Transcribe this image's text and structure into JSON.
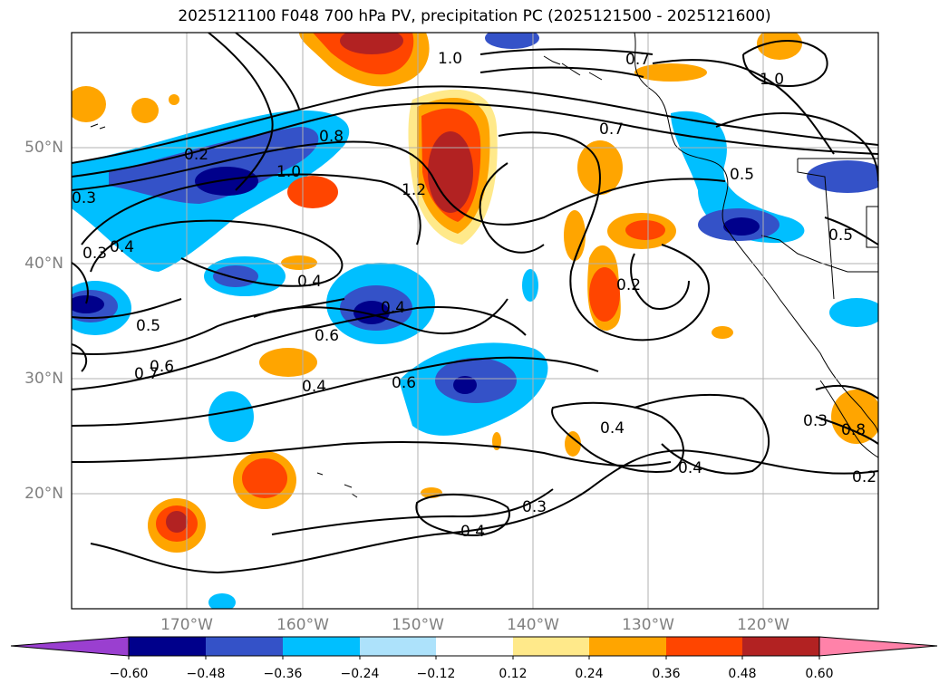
{
  "title": "2025121100 F048 700 hPa PV, precipitation PC (2025121500 - 2025121600)",
  "lon_labels": [
    "170°W",
    "160°W",
    "150°W",
    "140°W",
    "130°W",
    "120°W"
  ],
  "lat_labels": [
    "50°N",
    "40°N",
    "30°N",
    "20°N"
  ],
  "colorbar": {
    "tick_labels": [
      "−0.60",
      "−0.48",
      "−0.36",
      "−0.24",
      "−0.12",
      "0.12",
      "0.24",
      "0.36",
      "0.48",
      "0.60"
    ],
    "colors": [
      "#9a3fd0",
      "#00008b",
      "#3452c8",
      "#00bfff",
      "#ade2fb",
      "#ffffff",
      "#ffe98a",
      "#ffa500",
      "#ff4500",
      "#b22222",
      "#ff82a9"
    ]
  },
  "contour_labels": [
    "0.2",
    "0.8",
    "1.0",
    "1.2",
    "1.0",
    "0.7",
    "0.7",
    "1.0",
    "0.5",
    "0.5",
    "0.4",
    "0.3",
    "0.4",
    "0.6",
    "0.5",
    "0.6",
    "0.7",
    "0.4",
    "0.6",
    "0.4",
    "0.2",
    "0.4",
    "0.4",
    "0.3",
    "0.4",
    "0.3",
    "0.2",
    "0.8",
    "0.3"
  ],
  "colors": {
    "contour": "#000000",
    "grid": "#b0b0b0",
    "axis_label": "#808080"
  }
}
